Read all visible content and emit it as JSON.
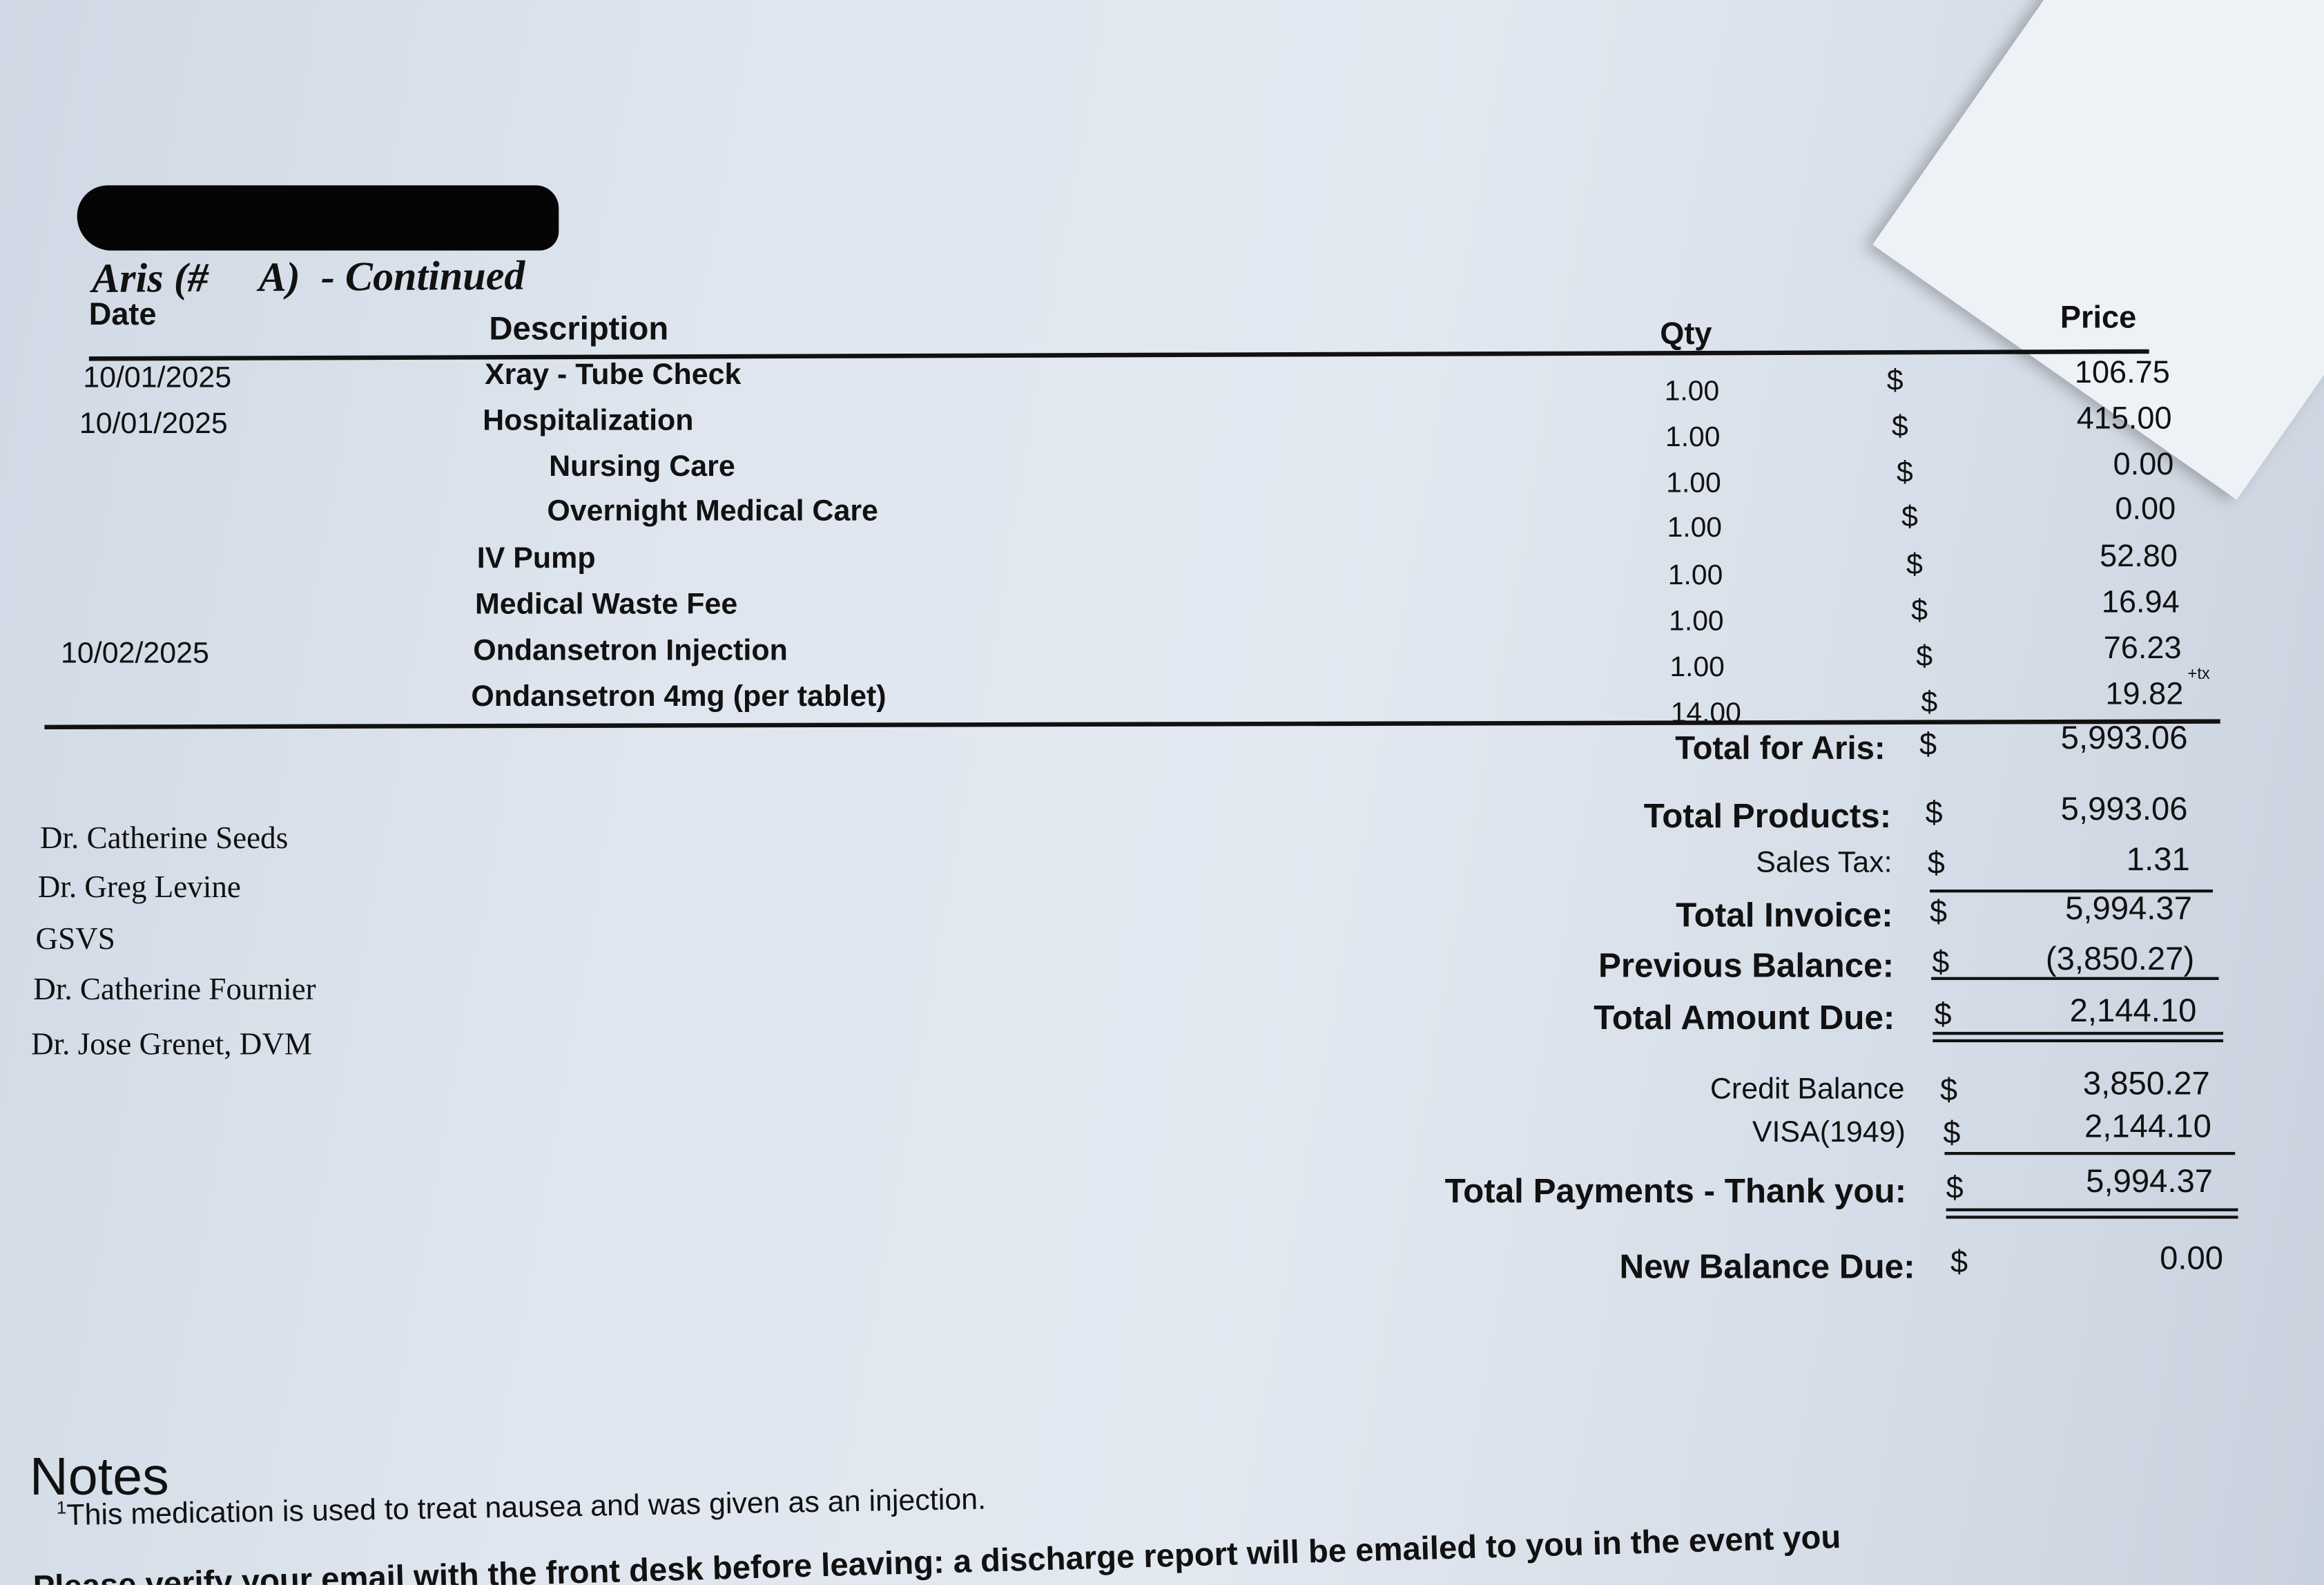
{
  "header": {
    "title": "Aris (#     A)  - Continued"
  },
  "columns": {
    "date": "Date",
    "description": "Description",
    "qty": "Qty",
    "price": "Price"
  },
  "items": [
    {
      "date": "10/01/2025",
      "description": "Xray - Tube Check",
      "qty": "1.00",
      "currency": "$",
      "price": "106.75",
      "indent": false
    },
    {
      "date": "10/01/2025",
      "description": "Hospitalization",
      "qty": "1.00",
      "currency": "$",
      "price": "415.00",
      "indent": false
    },
    {
      "date": "",
      "description": "Nursing Care",
      "qty": "1.00",
      "currency": "$",
      "price": "0.00",
      "indent": true
    },
    {
      "date": "",
      "description": "Overnight Medical Care",
      "qty": "1.00",
      "currency": "$",
      "price": "0.00",
      "indent": true
    },
    {
      "date": "",
      "description": "IV Pump",
      "qty": "1.00",
      "currency": "$",
      "price": "52.80",
      "indent": false
    },
    {
      "date": "",
      "description": "Medical Waste Fee",
      "qty": "1.00",
      "currency": "$",
      "price": "16.94",
      "indent": false
    },
    {
      "date": "10/02/2025",
      "description": "Ondansetron Injection",
      "qty": "1.00",
      "currency": "$",
      "price": "76.23",
      "indent": false
    },
    {
      "date": "",
      "description": "Ondansetron 4mg (per tablet)",
      "qty": "14.00",
      "currency": "$",
      "price": "19.82",
      "suffix": "+tx",
      "indent": false
    }
  ],
  "patient_total": {
    "label": "Total for Aris:",
    "currency": "$",
    "value": "5,993.06"
  },
  "doctors": [
    "Dr. Catherine Seeds",
    "Dr. Greg Levine",
    "GSVS",
    "Dr. Catherine Fournier",
    "Dr. Jose Grenet, DVM"
  ],
  "totals": [
    {
      "label": "Total Products:",
      "currency": "$",
      "value": "5,993.06",
      "bold": true
    },
    {
      "label": "Sales Tax:",
      "currency": "$",
      "value": "1.31",
      "bold": false
    },
    {
      "label": "Total Invoice:",
      "currency": "$",
      "value": "5,994.37",
      "bold": true
    },
    {
      "label": "Previous Balance:",
      "currency": "$",
      "value": "(3,850.27)",
      "bold": true
    },
    {
      "label": "Total Amount Due:",
      "currency": "$",
      "value": "2,144.10",
      "bold": true
    }
  ],
  "payments": [
    {
      "label": "Credit Balance",
      "currency": "$",
      "value": "3,850.27",
      "bold": false
    },
    {
      "label": "VISA(1949)",
      "currency": "$",
      "value": "2,144.10",
      "bold": false
    },
    {
      "label": "Total Payments - Thank you:",
      "currency": "$",
      "value": "5,994.37",
      "bold": true
    }
  ],
  "new_balance": {
    "label": "New Balance Due:",
    "currency": "$",
    "value": "0.00"
  },
  "notes": {
    "heading": "Notes",
    "footnote_marker": "1",
    "footnote": "This medication is used to treat nausea and was given as an injection.",
    "discharge": "Please verify your email with the front desk before leaving: a discharge report will be emailed to you in the event you"
  }
}
